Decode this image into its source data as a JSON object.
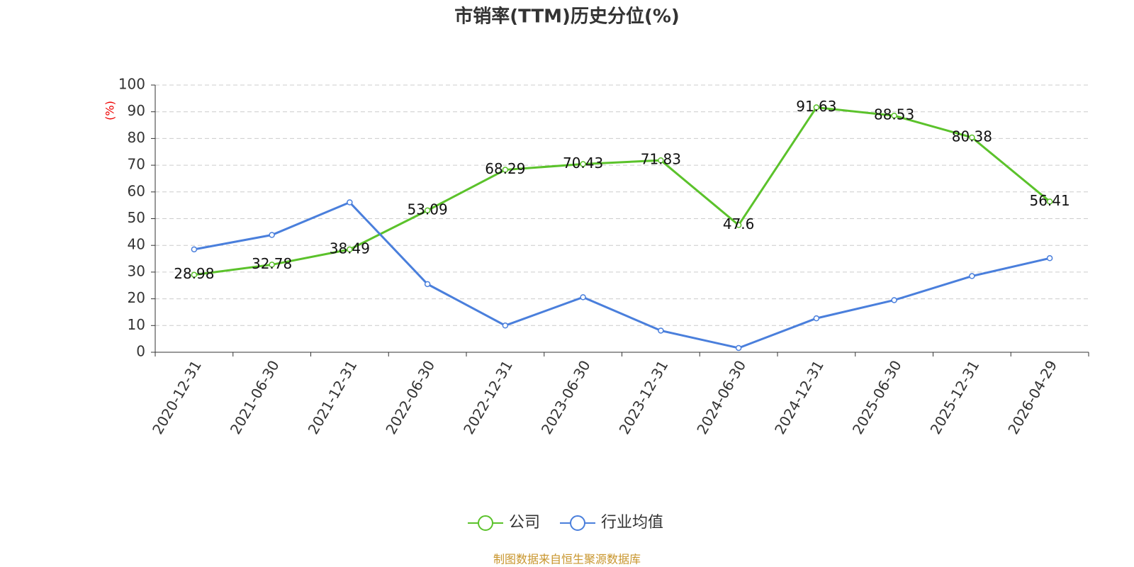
{
  "chart_data": {
    "type": "line",
    "title": "市销率(TTM)历史分位(%)",
    "y_label": "(%)",
    "categories": [
      "2020-12-31",
      "2021-06-30",
      "2021-12-31",
      "2022-06-30",
      "2022-12-31",
      "2023-06-30",
      "2023-12-31",
      "2024-06-30",
      "2024-12-31",
      "2025-06-30",
      "2025-12-31",
      "2026-04-29"
    ],
    "series": [
      {
        "name": "公司",
        "color": "#5bc22b",
        "values": [
          28.98,
          32.78,
          38.49,
          53.09,
          68.29,
          70.43,
          71.83,
          47.6,
          91.63,
          88.53,
          80.38,
          56.41
        ],
        "show_labels": true
      },
      {
        "name": "行业均值",
        "color": "#4a7fdc",
        "values": [
          38.5,
          43.9,
          56.1,
          25.5,
          10.0,
          20.6,
          8.1,
          1.6,
          12.7,
          19.5,
          28.5,
          35.2
        ],
        "show_labels": false
      }
    ],
    "ylim": [
      0,
      100
    ],
    "yticks": [
      0,
      10,
      20,
      30,
      40,
      50,
      60,
      70,
      80,
      90,
      100
    ],
    "grid": true,
    "source": "制图数据来自恒生聚源数据库"
  }
}
